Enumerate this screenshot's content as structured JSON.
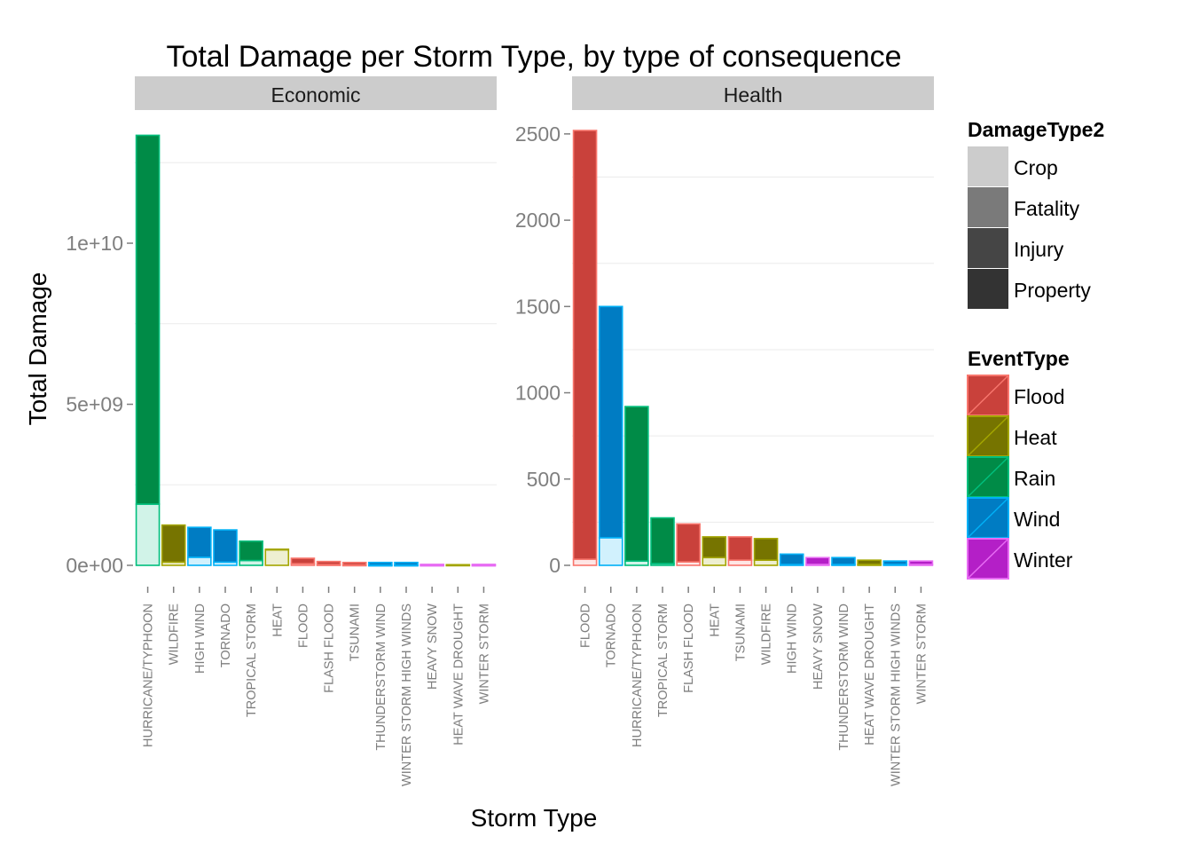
{
  "chart_data": {
    "type": "bar",
    "title": "Total Damage per Storm Type, by type of consequence",
    "xlabel": "Storm Type",
    "ylabel": "Total Damage",
    "stacked": true,
    "grid": true,
    "legend_position": "right",
    "panels": [
      {
        "name": "Economic",
        "ylim": [
          0,
          13500000000
        ],
        "yticks": [
          0,
          5000000000,
          10000000000
        ],
        "ytick_labels": [
          "0e+00",
          "5e+09",
          "1e+10"
        ],
        "categories": [
          "HURRICANE/TYPHOON",
          "WILDFIRE",
          "HIGH WIND",
          "TORNADO",
          "TROPICAL STORM",
          "HEAT",
          "FLOOD",
          "FLASH FLOOD",
          "TSUNAMI",
          "THUNDERSTORM WIND",
          "WINTER STORM HIGH WINDS",
          "HEAVY SNOW",
          "HEAT WAVE DROUGHT",
          "WINTER STORM"
        ],
        "event_types": [
          "Rain",
          "Heat",
          "Wind",
          "Wind",
          "Rain",
          "Heat",
          "Flood",
          "Flood",
          "Flood",
          "Wind",
          "Wind",
          "Winter",
          "Heat",
          "Winter"
        ],
        "series": [
          {
            "name": "Crop",
            "values": [
              1900000000,
              100000000,
              250000000,
              100000000,
              150000000,
              490000000,
              50000000,
              20000000,
              10000000,
              5000000,
              5000000,
              5000000,
              10000000,
              5000000
            ]
          },
          {
            "name": "Property",
            "values": [
              11450000000,
              1150000000,
              930000000,
              1000000000,
              600000000,
              10000000,
              170000000,
              100000000,
              80000000,
              85000000,
              85000000,
              25000000,
              10000000,
              25000000
            ]
          }
        ]
      },
      {
        "name": "Health",
        "ylim": [
          0,
          2520
        ],
        "yticks": [
          0,
          500,
          1000,
          1500,
          2000,
          2500
        ],
        "ytick_labels": [
          "0",
          "500",
          "1000",
          "1500",
          "2000",
          "2500"
        ],
        "categories": [
          "FLOOD",
          "TORNADO",
          "HURRICANE/TYPHOON",
          "TROPICAL STORM",
          "FLASH FLOOD",
          "HEAT",
          "TSUNAMI",
          "WILDFIRE",
          "HIGH WIND",
          "HEAVY SNOW",
          "THUNDERSTORM WIND",
          "HEAT WAVE DROUGHT",
          "WINTER STORM HIGH WINDS",
          "WINTER STORM"
        ],
        "event_types": [
          "Flood",
          "Wind",
          "Rain",
          "Rain",
          "Flood",
          "Heat",
          "Flood",
          "Heat",
          "Wind",
          "Winter",
          "Wind",
          "Heat",
          "Wind",
          "Winter"
        ],
        "series": [
          {
            "name": "Fatality",
            "values": [
              35,
              160,
              25,
              10,
              20,
              45,
              30,
              30,
              5,
              5,
              5,
              5,
              5,
              5
            ]
          },
          {
            "name": "Injury",
            "values": [
              2485,
              1340,
              895,
              265,
              220,
              120,
              135,
              125,
              60,
              40,
              40,
              25,
              20,
              20
            ]
          }
        ]
      }
    ]
  },
  "legend": {
    "damage_type": {
      "title": "DamageType2",
      "items": [
        {
          "label": "Crop",
          "color": "#cccccc"
        },
        {
          "label": "Fatality",
          "color": "#7a7a7a"
        },
        {
          "label": "Injury",
          "color": "#454545"
        },
        {
          "label": "Property",
          "color": "#333333"
        }
      ]
    },
    "event_type": {
      "title": "EventType",
      "items": [
        {
          "label": "Flood",
          "color": "#c9413b",
          "stroke": "#f8766d"
        },
        {
          "label": "Heat",
          "color": "#767400",
          "stroke": "#a3a500"
        },
        {
          "label": "Rain",
          "color": "#008b47",
          "stroke": "#00bf7d"
        },
        {
          "label": "Wind",
          "color": "#007cc3",
          "stroke": "#00b0f6"
        },
        {
          "label": "Winter",
          "color": "#b41fc7",
          "stroke": "#e76bf3"
        }
      ]
    }
  }
}
